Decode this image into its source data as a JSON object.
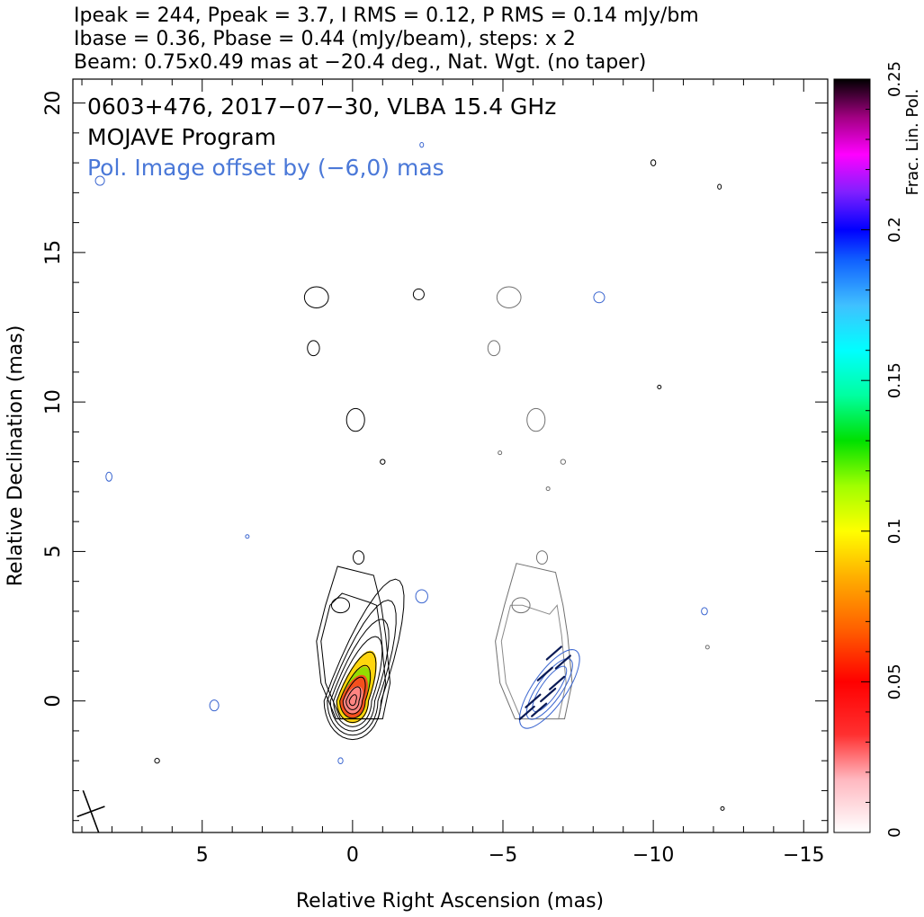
{
  "header": {
    "line1": "Ipeak = 244, Ppeak = 3.7, I RMS = 0.12, P RMS = 0.14 mJy/bm",
    "line2": "Ibase = 0.36, Pbase = 0.44 (mJy/beam), steps: x 2",
    "line3": "Beam: 0.75x0.49 mas at −20.4 deg., Nat. Wgt. (no taper)"
  },
  "annotations": {
    "source": "0603+476, 2017−07−30, VLBA 15.4 GHz",
    "program": "MOJAVE Program",
    "offset": "Pol. Image offset by (−6,0) mas"
  },
  "colorbar": {
    "label": "Frac. Lin. Pol.",
    "range": [
      0,
      0.25
    ],
    "ticks": [
      {
        "value": 0,
        "label": "0"
      },
      {
        "value": 0.05,
        "label": "0.05"
      },
      {
        "value": 0.1,
        "label": "0.1"
      },
      {
        "value": 0.15,
        "label": "0.15"
      },
      {
        "value": 0.2,
        "label": "0.2"
      },
      {
        "value": 0.25,
        "label": "0.25"
      }
    ]
  },
  "colors": {
    "stokes_i_contour": "#000000",
    "pol_contour": "#3b66d0",
    "grey_contour": "#707070",
    "evpa_vector": "#0a1a55",
    "annotation_blue": "#4a78d8"
  },
  "chart_data": {
    "type": "contour",
    "xlabel": "Relative Right Ascension (mas)",
    "ylabel": "Relative Declination (mas)",
    "xlim": [
      9.3,
      -15.8
    ],
    "ylim": [
      -4.4,
      20.8
    ],
    "xticks": [
      {
        "value": 5,
        "label": "5"
      },
      {
        "value": 0,
        "label": "0"
      },
      {
        "value": -5,
        "label": "−5"
      },
      {
        "value": -10,
        "label": "−10"
      },
      {
        "value": -15,
        "label": "−15"
      }
    ],
    "yticks": [
      {
        "value": 0,
        "label": "0"
      },
      {
        "value": 5,
        "label": "5"
      },
      {
        "value": 10,
        "label": "10"
      },
      {
        "value": 15,
        "label": "15"
      },
      {
        "value": 20,
        "label": "20"
      }
    ],
    "beam": {
      "major": 0.75,
      "minor": 0.49,
      "pa_deg": -20.4,
      "ra": 8.7,
      "dec": -3.7
    },
    "stokes_i_core": {
      "ra": 0.0,
      "dec": 0.0,
      "levels": 9
    },
    "polarization_offset_ra": -6,
    "frac_pol_range": [
      0,
      0.12
    ]
  }
}
